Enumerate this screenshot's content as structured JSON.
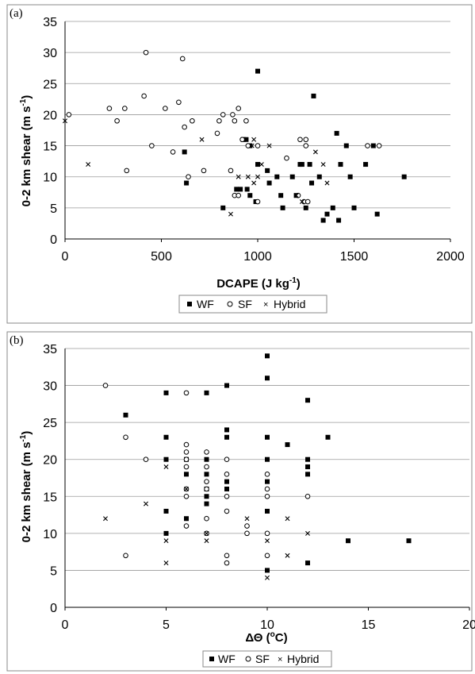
{
  "chart_data": [
    {
      "type": "scatter",
      "panel_label": "(a)",
      "xlabel": "DCAPE (J kg",
      "xlabel_sup": "-1",
      "xlabel_end": ")",
      "ylabel": "0-2 km shear (m s",
      "ylabel_sup": "-1",
      "ylabel_end": ")",
      "xlim": [
        0,
        2000
      ],
      "ylim": [
        0,
        35
      ],
      "x_ticks": [
        "0",
        "500",
        "1000",
        "1500",
        "2000"
      ],
      "y_ticks": [
        "0",
        "5",
        "10",
        "15",
        "20",
        "25",
        "30",
        "35"
      ],
      "grid": "horizontal",
      "legend": {
        "placement": "bottom",
        "entries": [
          "WF",
          "SF",
          "Hybrid"
        ]
      },
      "series": [
        {
          "name": "WF",
          "marker": "filled-square",
          "points": [
            [
              1000,
              27
            ],
            [
              1290,
              23
            ],
            [
              620,
              14
            ],
            [
              940,
              16
            ],
            [
              925,
              16
            ],
            [
              960,
              15
            ],
            [
              1000,
              12
            ],
            [
              1050,
              11
            ],
            [
              1100,
              10
            ],
            [
              1180,
              10
            ],
            [
              1220,
              12
            ],
            [
              1230,
              12
            ],
            [
              1270,
              12
            ],
            [
              1320,
              10
            ],
            [
              1410,
              17
            ],
            [
              1460,
              15
            ],
            [
              1430,
              12
            ],
            [
              1560,
              12
            ],
            [
              1480,
              10
            ],
            [
              1600,
              15
            ],
            [
              1760,
              10
            ],
            [
              630,
              9
            ],
            [
              890,
              8
            ],
            [
              910,
              8
            ],
            [
              945,
              8
            ],
            [
              960,
              7
            ],
            [
              1060,
              9
            ],
            [
              1120,
              7
            ],
            [
              1200,
              7
            ],
            [
              1280,
              9
            ],
            [
              820,
              5
            ],
            [
              990,
              6
            ],
            [
              1130,
              5
            ],
            [
              1250,
              5
            ],
            [
              1340,
              3
            ],
            [
              1360,
              4
            ],
            [
              1390,
              5
            ],
            [
              1420,
              3
            ],
            [
              1500,
              5
            ],
            [
              1620,
              4
            ]
          ]
        },
        {
          "name": "SF",
          "marker": "open-circle",
          "points": [
            [
              20,
              20
            ],
            [
              420,
              30
            ],
            [
              610,
              29
            ],
            [
              230,
              21
            ],
            [
              310,
              21
            ],
            [
              270,
              19
            ],
            [
              410,
              23
            ],
            [
              520,
              21
            ],
            [
              590,
              22
            ],
            [
              450,
              15
            ],
            [
              320,
              11
            ],
            [
              560,
              14
            ],
            [
              620,
              18
            ],
            [
              660,
              19
            ],
            [
              790,
              17
            ],
            [
              800,
              19
            ],
            [
              820,
              20
            ],
            [
              870,
              20
            ],
            [
              880,
              19
            ],
            [
              900,
              21
            ],
            [
              920,
              16
            ],
            [
              940,
              19
            ],
            [
              640,
              10
            ],
            [
              720,
              11
            ],
            [
              860,
              11
            ],
            [
              950,
              15
            ],
            [
              1000,
              15
            ],
            [
              1150,
              13
            ],
            [
              1220,
              16
            ],
            [
              1250,
              16
            ],
            [
              1250,
              15
            ],
            [
              1570,
              15
            ],
            [
              1630,
              15
            ],
            [
              880,
              7
            ],
            [
              900,
              7
            ],
            [
              1000,
              6
            ],
            [
              1210,
              7
            ],
            [
              1240,
              6
            ],
            [
              1260,
              6
            ]
          ]
        },
        {
          "name": "Hybrid",
          "marker": "x",
          "points": [
            [
              0,
              19
            ],
            [
              120,
              12
            ],
            [
              710,
              16
            ],
            [
              980,
              16
            ],
            [
              970,
              15
            ],
            [
              1000,
              10
            ],
            [
              980,
              9
            ],
            [
              1020,
              12
            ],
            [
              1060,
              15
            ],
            [
              1300,
              14
            ],
            [
              1340,
              12
            ],
            [
              1360,
              9
            ],
            [
              900,
              10
            ],
            [
              950,
              10
            ],
            [
              1200,
              7
            ],
            [
              1230,
              6
            ],
            [
              860,
              4
            ]
          ]
        }
      ]
    },
    {
      "type": "scatter",
      "panel_label": "(b)",
      "xlabel": "ΔΘ (",
      "xlabel_sup": "o",
      "xlabel_end": "C)",
      "ylabel": "0-2 km shear (m s",
      "ylabel_sup": "-1",
      "ylabel_end": ")",
      "xlim": [
        0,
        20
      ],
      "ylim": [
        0,
        35
      ],
      "x_ticks": [
        "0",
        "5",
        "10",
        "15",
        "20"
      ],
      "y_ticks": [
        "0",
        "5",
        "10",
        "15",
        "20",
        "25",
        "30",
        "35"
      ],
      "grid": "horizontal",
      "legend": {
        "placement": "bottom",
        "entries": [
          "WF",
          "SF",
          "Hybrid"
        ]
      },
      "series": [
        {
          "name": "WF",
          "marker": "filled-square",
          "points": [
            [
              3,
              26
            ],
            [
              5,
              29
            ],
            [
              5,
              23
            ],
            [
              5,
              20
            ],
            [
              5,
              13
            ],
            [
              5,
              10
            ],
            [
              6,
              20
            ],
            [
              6,
              18
            ],
            [
              6,
              12
            ],
            [
              7,
              29
            ],
            [
              7,
              20
            ],
            [
              7,
              18
            ],
            [
              7,
              16
            ],
            [
              7,
              15
            ],
            [
              7,
              14
            ],
            [
              8,
              30
            ],
            [
              8,
              24
            ],
            [
              8,
              23
            ],
            [
              8,
              17
            ],
            [
              8,
              16
            ],
            [
              10,
              34
            ],
            [
              10,
              31
            ],
            [
              10,
              23
            ],
            [
              10,
              20
            ],
            [
              10,
              17
            ],
            [
              10,
              13
            ],
            [
              10,
              5
            ],
            [
              11,
              22
            ],
            [
              12,
              28
            ],
            [
              12,
              20
            ],
            [
              12,
              19
            ],
            [
              12,
              18
            ],
            [
              12,
              6
            ],
            [
              13,
              23
            ],
            [
              14,
              9
            ],
            [
              17,
              9
            ]
          ]
        },
        {
          "name": "SF",
          "marker": "open-circle",
          "points": [
            [
              2,
              30
            ],
            [
              3,
              23
            ],
            [
              4,
              20
            ],
            [
              3,
              7
            ],
            [
              6,
              29
            ],
            [
              6,
              22
            ],
            [
              6,
              21
            ],
            [
              6,
              20
            ],
            [
              6,
              19
            ],
            [
              6,
              16
            ],
            [
              6,
              15
            ],
            [
              6,
              11
            ],
            [
              7,
              21
            ],
            [
              7,
              19
            ],
            [
              7,
              17
            ],
            [
              7,
              16
            ],
            [
              7,
              12
            ],
            [
              7,
              10
            ],
            [
              8,
              20
            ],
            [
              8,
              18
            ],
            [
              8,
              15
            ],
            [
              8,
              13
            ],
            [
              8,
              7
            ],
            [
              8,
              6
            ],
            [
              9,
              11
            ],
            [
              9,
              10
            ],
            [
              10,
              18
            ],
            [
              10,
              16
            ],
            [
              10,
              15
            ],
            [
              10,
              10
            ],
            [
              10,
              7
            ],
            [
              12,
              15
            ]
          ]
        },
        {
          "name": "Hybrid",
          "marker": "x",
          "points": [
            [
              2,
              12
            ],
            [
              4,
              14
            ],
            [
              5,
              19
            ],
            [
              5,
              9
            ],
            [
              5,
              6
            ],
            [
              6,
              16
            ],
            [
              7,
              10
            ],
            [
              7,
              9
            ],
            [
              8,
              16
            ],
            [
              9,
              12
            ],
            [
              10,
              9
            ],
            [
              10,
              4
            ],
            [
              11,
              12
            ],
            [
              11,
              7
            ],
            [
              12,
              10
            ]
          ]
        }
      ]
    }
  ]
}
